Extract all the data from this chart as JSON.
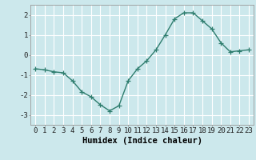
{
  "x": [
    0,
    1,
    2,
    3,
    4,
    5,
    6,
    7,
    8,
    9,
    10,
    11,
    12,
    13,
    14,
    15,
    16,
    17,
    18,
    19,
    20,
    21,
    22,
    23
  ],
  "y": [
    -0.7,
    -0.75,
    -0.85,
    -0.9,
    -1.3,
    -1.85,
    -2.1,
    -2.5,
    -2.8,
    -2.55,
    -1.3,
    -0.7,
    -0.3,
    0.25,
    1.0,
    1.8,
    2.1,
    2.1,
    1.7,
    1.3,
    0.6,
    0.15,
    0.2,
    0.25
  ],
  "line_color": "#2e7d6e",
  "marker": "+",
  "marker_color": "#2e7d6e",
  "bg_color": "#cce8ec",
  "grid_color": "#ffffff",
  "xlabel": "Humidex (Indice chaleur)",
  "xlim": [
    -0.5,
    23.5
  ],
  "ylim": [
    -3.5,
    2.5
  ],
  "yticks": [
    -3,
    -2,
    -1,
    0,
    1,
    2
  ],
  "xticks": [
    0,
    1,
    2,
    3,
    4,
    5,
    6,
    7,
    8,
    9,
    10,
    11,
    12,
    13,
    14,
    15,
    16,
    17,
    18,
    19,
    20,
    21,
    22,
    23
  ],
  "tick_labelsize": 6.5,
  "xlabel_fontsize": 7.5,
  "line_width": 1.0,
  "marker_size": 4.5
}
